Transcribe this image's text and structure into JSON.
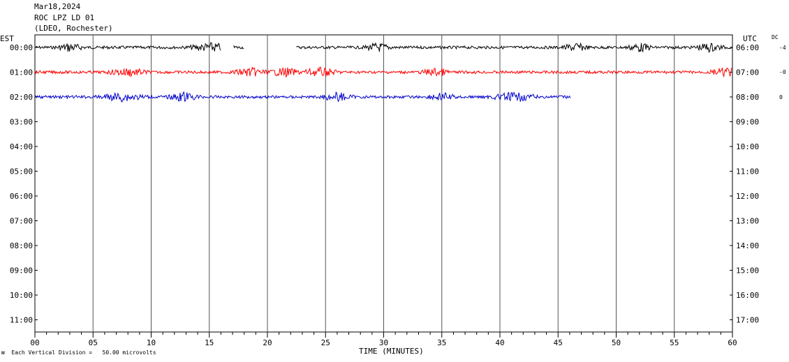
{
  "header": {
    "date": "Mar18,2024",
    "station": "ROC LPZ LD 01",
    "network": "(LDEO, Rochester)"
  },
  "left_zone_label": "EST",
  "right_zone_label": "UTC",
  "dc_label": "DC",
  "dc_values": [
    "-4",
    "-0",
    "0"
  ],
  "footer": {
    "icon_text": "ᴍ",
    "division_text": "Each Vertical Division =",
    "division_value": "50.00 microvolts"
  },
  "chart_data": {
    "type": "line",
    "xlabel": "TIME (MINUTES)",
    "xlim": [
      0,
      60
    ],
    "x_ticks": [
      "00",
      "05",
      "10",
      "15",
      "20",
      "25",
      "30",
      "35",
      "40",
      "45",
      "50",
      "55",
      "60"
    ],
    "left_row_labels": [
      "00:00",
      "01:00",
      "02:00",
      "03:00",
      "04:00",
      "05:00",
      "06:00",
      "07:00",
      "08:00",
      "09:00",
      "10:00",
      "11:00"
    ],
    "right_row_labels": [
      "06:00",
      "07:00",
      "08:00",
      "09:00",
      "10:00",
      "11:00",
      "12:00",
      "13:00",
      "14:00",
      "15:00",
      "16:00",
      "17:00"
    ],
    "series": [
      {
        "row": 0,
        "color": "#000000",
        "segments": [
          [
            0,
            16
          ],
          [
            17.1,
            18.0
          ],
          [
            22.5,
            60
          ]
        ],
        "bursts": [
          [
            3.0,
            1.4
          ],
          [
            15.2,
            2.4
          ],
          [
            29.5,
            1.4
          ],
          [
            46.5,
            1.3
          ],
          [
            52.0,
            1.3
          ],
          [
            58.0,
            1.5
          ]
        ]
      },
      {
        "row": 1,
        "color": "#ff0000",
        "segments": [
          [
            0,
            60
          ]
        ],
        "bursts": [
          [
            8.0,
            2.0
          ],
          [
            18.5,
            1.8
          ],
          [
            21.5,
            1.6
          ],
          [
            24.5,
            2.0
          ],
          [
            34.5,
            1.5
          ],
          [
            59.5,
            1.8
          ]
        ]
      },
      {
        "row": 2,
        "color": "#0000cc",
        "segments": [
          [
            0,
            46.1
          ]
        ],
        "bursts": [
          [
            7.5,
            2.4
          ],
          [
            12.8,
            1.6
          ],
          [
            26.0,
            1.6
          ],
          [
            35.0,
            1.4
          ],
          [
            41.2,
            2.4
          ]
        ]
      }
    ]
  }
}
